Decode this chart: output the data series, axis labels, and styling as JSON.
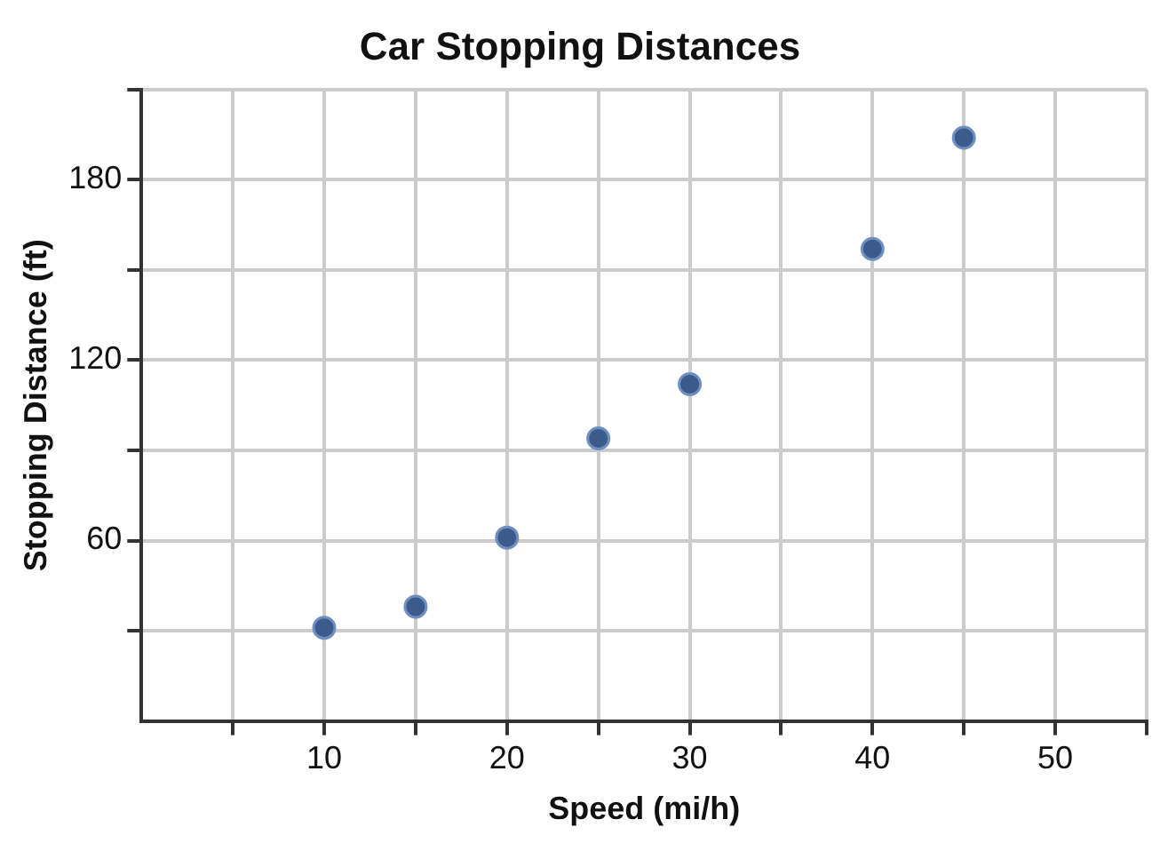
{
  "chart_data": {
    "type": "scatter",
    "title": "Car Stopping Distances",
    "xlabel": "Speed (mi/h)",
    "ylabel": "Stopping Distance (ft)",
    "x": [
      10,
      15,
      20,
      25,
      30,
      40,
      45
    ],
    "series": [
      {
        "color": "#3a5b8c",
        "values": [
          31,
          38,
          61,
          94,
          112,
          157,
          194
        ]
      }
    ],
    "xlim": [
      0,
      55
    ],
    "ylim": [
      0,
      210
    ],
    "xticks": [
      {
        "value": 5,
        "label": null
      },
      10,
      {
        "value": 15,
        "label": null
      },
      20,
      {
        "value": 25,
        "label": null
      },
      30,
      {
        "value": 35,
        "label": null
      },
      40,
      {
        "value": 45,
        "label": null
      },
      50,
      {
        "value": 55,
        "label": null
      }
    ],
    "yticks": [
      {
        "value": 30,
        "label": null
      },
      60,
      {
        "value": 90,
        "label": null
      },
      120,
      {
        "value": 150,
        "label": null
      },
      180,
      {
        "value": 210,
        "label": null
      }
    ],
    "grid": true,
    "legend": false,
    "marker": "circle"
  }
}
